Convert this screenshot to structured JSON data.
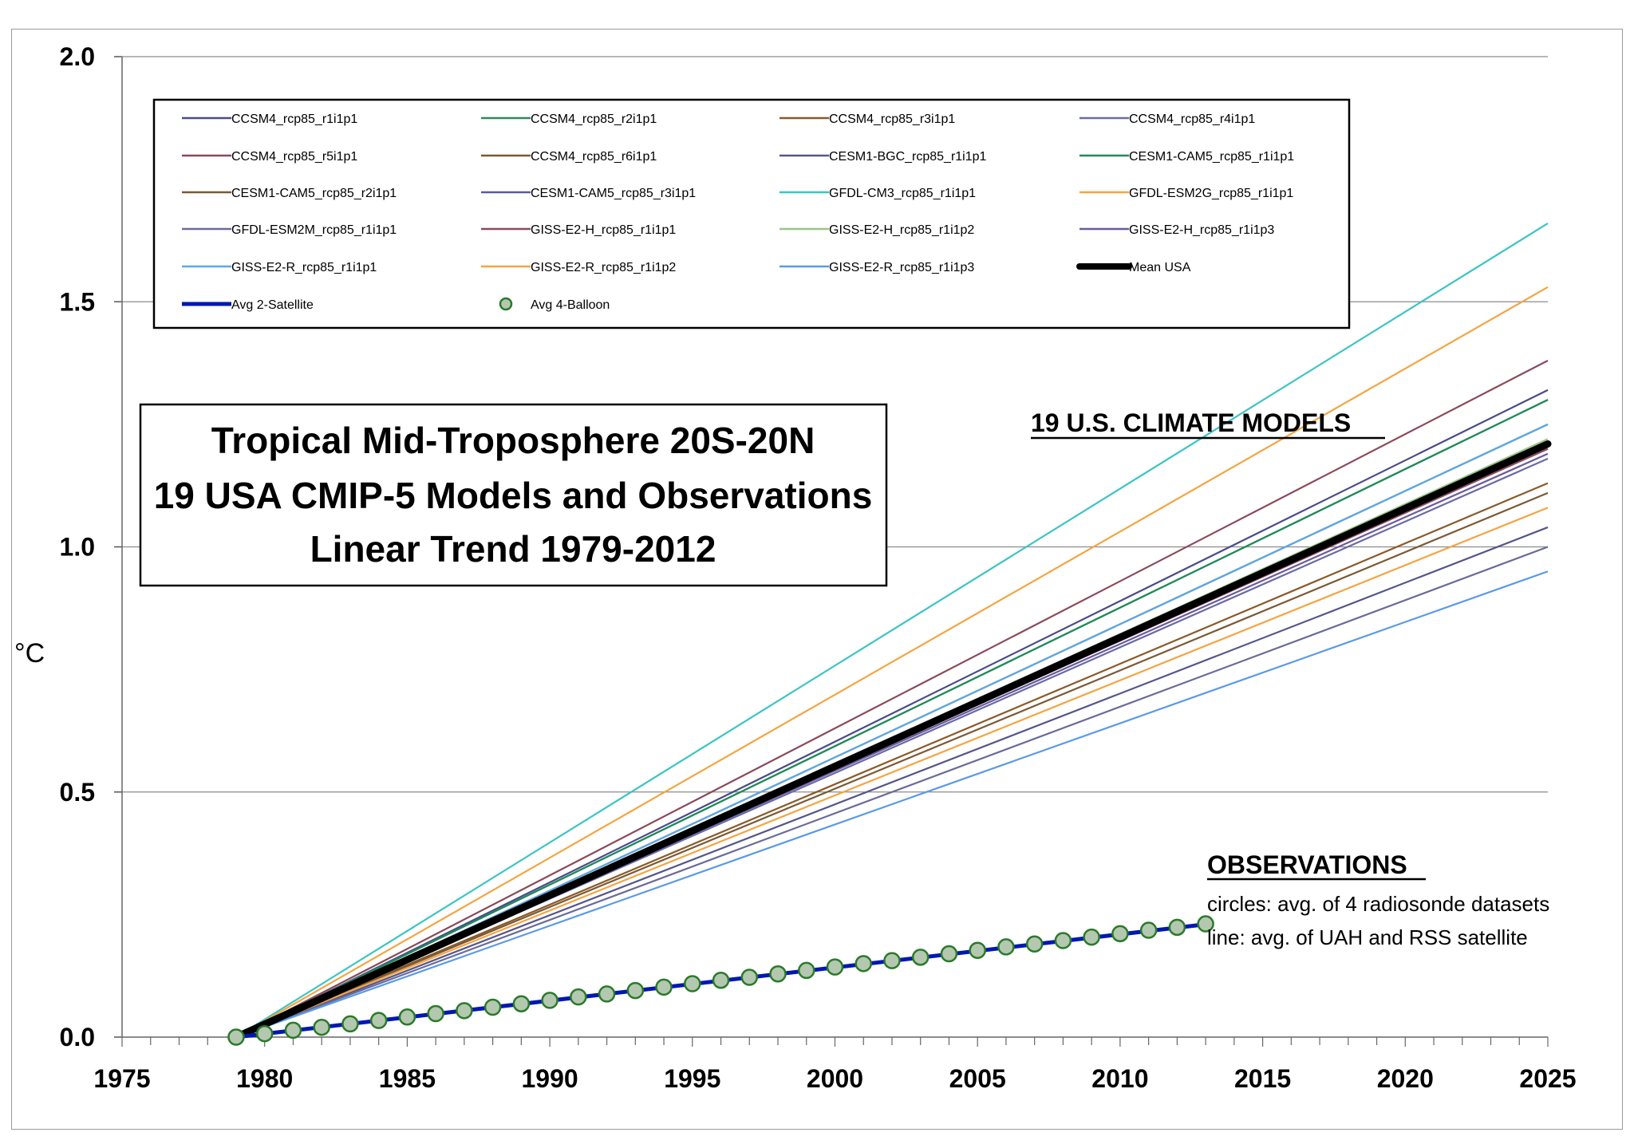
{
  "chart_data": {
    "type": "line",
    "title_lines": [
      "Tropical Mid-Troposphere 20S-20N",
      "19 USA CMIP-5 Models and Observations",
      "Linear Trend 1979-2012"
    ],
    "ylabel": "°C",
    "xlabel": "",
    "xlim": [
      1975,
      2025
    ],
    "ylim": [
      0,
      2
    ],
    "x_ticks": [
      "1975",
      "1980",
      "1985",
      "1990",
      "1995",
      "2000",
      "2005",
      "2010",
      "2015",
      "2020",
      "2025"
    ],
    "y_ticks": [
      "0.0",
      "0.5",
      "1.0",
      "1.5",
      "2.0"
    ],
    "grid": "horizontal",
    "annotations": {
      "models_label": "19 U.S. CLIMATE MODELS",
      "observations_heading": "OBSERVATIONS",
      "observations_lines": [
        "circles: avg. of 4 radiosonde datasets",
        "line: avg. of UAH and RSS satellite"
      ]
    },
    "models": [
      {
        "name": "CCSM4_rcp85_r1i1p1",
        "color": "#4b4b8a",
        "x": [
          1979,
          2025
        ],
        "y": [
          0,
          1.32
        ]
      },
      {
        "name": "CCSM4_rcp85_r2i1p1",
        "color": "#2f8a5e",
        "x": [
          1979,
          2025
        ],
        "y": [
          0,
          1.3
        ]
      },
      {
        "name": "CCSM4_rcp85_r3i1p1",
        "color": "#8a5a2a",
        "x": [
          1979,
          2025
        ],
        "y": [
          0,
          1.13
        ]
      },
      {
        "name": "CCSM4_rcp85_r4i1p1",
        "color": "#6a6aa8",
        "x": [
          1979,
          2025
        ],
        "y": [
          0,
          1.18
        ]
      },
      {
        "name": "CCSM4_rcp85_r5i1p1",
        "color": "#8a4a5a",
        "x": [
          1979,
          2025
        ],
        "y": [
          0,
          1.38
        ]
      },
      {
        "name": "CCSM4_rcp85_r6i1p1",
        "color": "#7a5a30",
        "x": [
          1979,
          2025
        ],
        "y": [
          0,
          1.25
        ]
      },
      {
        "name": "CESM1-BGC_rcp85_r1i1p1",
        "color": "#55558a",
        "x": [
          1979,
          2025
        ],
        "y": [
          0,
          1.04
        ]
      },
      {
        "name": "CESM1-CAM5_rcp85_r1i1p1",
        "color": "#1f8a5a",
        "x": [
          1979,
          2025
        ],
        "y": [
          0,
          1.3
        ]
      },
      {
        "name": "CESM1-CAM5_rcp85_r2i1p1",
        "color": "#7a5a35",
        "x": [
          1979,
          2025
        ],
        "y": [
          0,
          1.11
        ]
      },
      {
        "name": "CESM1-CAM5_rcp85_r3i1p1",
        "color": "#5a5a9a",
        "x": [
          1979,
          2025
        ],
        "y": [
          0,
          1.2
        ]
      },
      {
        "name": "GFDL-CM3_rcp85_r1i1p1",
        "color": "#3cc4c4",
        "x": [
          1979,
          2025
        ],
        "y": [
          0,
          1.66
        ]
      },
      {
        "name": "GFDL-ESM2G_rcp85_r1i1p1",
        "color": "#f5a442",
        "x": [
          1979,
          2025
        ],
        "y": [
          0,
          1.53
        ]
      },
      {
        "name": "GFDL-ESM2M_rcp85_r1i1p1",
        "color": "#6a6a9a",
        "x": [
          1979,
          2025
        ],
        "y": [
          0,
          1.0
        ]
      },
      {
        "name": "GISS-E2-H_rcp85_r1i1p1",
        "color": "#8a4a60",
        "x": [
          1979,
          2025
        ],
        "y": [
          0,
          1.2
        ]
      },
      {
        "name": "GISS-E2-H_rcp85_r1i1p2",
        "color": "#9ac48a",
        "x": [
          1979,
          2025
        ],
        "y": [
          0,
          1.22
        ]
      },
      {
        "name": "GISS-E2-H_rcp85_r1i1p3",
        "color": "#6a5a9a",
        "x": [
          1979,
          2025
        ],
        "y": [
          0,
          1.19
        ]
      },
      {
        "name": "GISS-E2-R_rcp85_r1i1p1",
        "color": "#5aa8e8",
        "x": [
          1979,
          2025
        ],
        "y": [
          0,
          1.25
        ]
      },
      {
        "name": "GISS-E2-R_rcp85_r1i1p2",
        "color": "#f5a442",
        "x": [
          1979,
          2025
        ],
        "y": [
          0,
          1.08
        ]
      },
      {
        "name": "GISS-E2-R_rcp85_r1i1p3",
        "color": "#5a9ae8",
        "x": [
          1979,
          2025
        ],
        "y": [
          0,
          0.95
        ]
      }
    ],
    "mean": {
      "name": "Mean USA",
      "color": "#000000",
      "x": [
        1979,
        2025
      ],
      "y": [
        0,
        1.21
      ]
    },
    "satellite": {
      "name": "Avg 2-Satellite",
      "color": "#0018b0",
      "x": [
        1979,
        2013
      ],
      "y": [
        0,
        0.23
      ]
    },
    "balloon": {
      "name": "Avg 4-Balloon",
      "fill": "#b4c8b0",
      "stroke": "#2a7a2a",
      "x": [
        1979,
        1980,
        1981,
        1982,
        1983,
        1984,
        1985,
        1986,
        1987,
        1988,
        1989,
        1990,
        1991,
        1992,
        1993,
        1994,
        1995,
        1996,
        1997,
        1998,
        1999,
        2000,
        2001,
        2002,
        2003,
        2004,
        2005,
        2006,
        2007,
        2008,
        2009,
        2010,
        2011,
        2012,
        2013
      ],
      "y": [
        0.0,
        0.007,
        0.014,
        0.02,
        0.027,
        0.034,
        0.041,
        0.048,
        0.054,
        0.061,
        0.068,
        0.075,
        0.082,
        0.088,
        0.095,
        0.102,
        0.109,
        0.116,
        0.122,
        0.129,
        0.136,
        0.143,
        0.15,
        0.156,
        0.163,
        0.17,
        0.177,
        0.184,
        0.19,
        0.197,
        0.204,
        0.211,
        0.218,
        0.224,
        0.231
      ]
    },
    "legend_order": [
      "CCSM4_rcp85_r1i1p1",
      "CCSM4_rcp85_r2i1p1",
      "CCSM4_rcp85_r3i1p1",
      "CCSM4_rcp85_r4i1p1",
      "CCSM4_rcp85_r5i1p1",
      "CCSM4_rcp85_r6i1p1",
      "CESM1-BGC_rcp85_r1i1p1",
      "CESM1-CAM5_rcp85_r1i1p1",
      "CESM1-CAM5_rcp85_r2i1p1",
      "CESM1-CAM5_rcp85_r3i1p1",
      "GFDL-CM3_rcp85_r1i1p1",
      "GFDL-ESM2G_rcp85_r1i1p1",
      "GFDL-ESM2M_rcp85_r1i1p1",
      "GISS-E2-H_rcp85_r1i1p1",
      "GISS-E2-H_rcp85_r1i1p2",
      "GISS-E2-H_rcp85_r1i1p3",
      "GISS-E2-R_rcp85_r1i1p1",
      "GISS-E2-R_rcp85_r1i1p2",
      "GISS-E2-R_rcp85_r1i1p3",
      "Mean USA",
      "Avg 2-Satellite",
      "Avg 4-Balloon"
    ]
  }
}
